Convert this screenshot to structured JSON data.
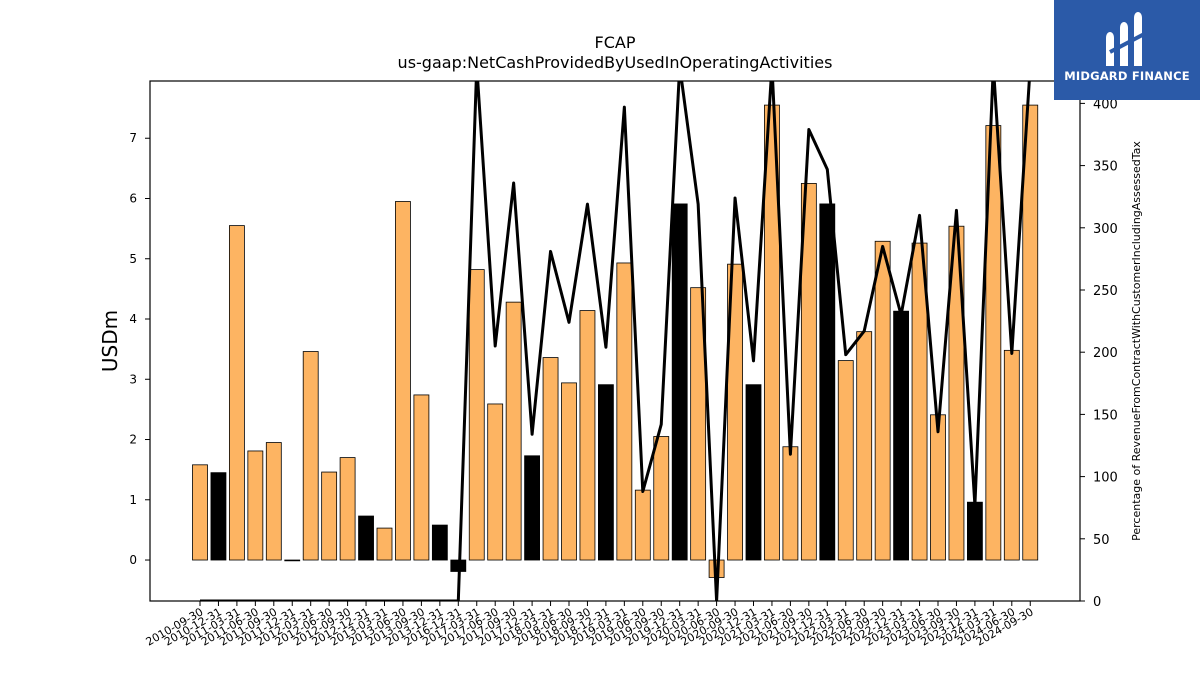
{
  "brand": {
    "logo_text": "MIDGARD FINANCE"
  },
  "chart_data": {
    "type": "bar",
    "title": "FCAP",
    "subtitle": "us-gaap:NetCashProvidedByUsedInOperatingActivities",
    "ylabel": "USDm",
    "y2label": "Percentage of RevenueFromContractWithCustomerIncludingAssessedTax",
    "ylim": [
      -0.68,
      7.95
    ],
    "y2lim": [
      0,
      418
    ],
    "yticks": [
      0,
      1,
      2,
      3,
      4,
      5,
      6,
      7
    ],
    "y2ticks": [
      0,
      50,
      100,
      150,
      200,
      250,
      300,
      350,
      400
    ],
    "grid": false,
    "categories": [
      "2010-09-30",
      "2010-12-31",
      "2011-03-31",
      "2011-06-30",
      "2011-09-30",
      "2011-12-31",
      "2012-03-31",
      "2012-06-30",
      "2012-09-30",
      "2012-12-31",
      "2013-03-31",
      "2013-06-30",
      "2013-09-30",
      "2013-12-31",
      "2016-12-31",
      "2017-03-31",
      "2017-06-30",
      "2017-09-30",
      "2017-12-31",
      "2018-03-31",
      "2018-06-30",
      "2018-09-30",
      "2018-12-31",
      "2019-03-31",
      "2019-06-30",
      "2019-09-30",
      "2019-12-31",
      "2020-03-31",
      "2020-06-30",
      "2020-09-30",
      "2020-12-31",
      "2021-03-31",
      "2021-06-30",
      "2021-09-30",
      "2021-12-31",
      "2022-03-31",
      "2022-06-30",
      "2022-09-30",
      "2022-12-31",
      "2023-03-31",
      "2023-06-30",
      "2023-09-30",
      "2023-12-31",
      "2024-03-31",
      "2024-06-30",
      "2024-09-30"
    ],
    "tick_labels": [
      "2010-09-30",
      "2010-12-31",
      "2011-03-31",
      "2011-06-30",
      "2011-09-30",
      "2011-12-31",
      "2012-03-31",
      "2012-06-30",
      "2012-09-30",
      "2012-12-31",
      "2013-03-31",
      "2013-06-30",
      "2013-09-30",
      "2013-12-31",
      "2016-12-31",
      "2017-03-31",
      "2017-06-30",
      "2017-09-30",
      "2017-12-31",
      "2018-03-31",
      "2018-06-30",
      "2018-09-30",
      "2018-12-31",
      "2019-03-31",
      "2019-06-30",
      "2019-09-30",
      "2019-12-31",
      "2020-03-31",
      "2020-06-30",
      "2020-09-30",
      "2020-12-31",
      "2021-03-31",
      "2021-06-30",
      "2021-09-30",
      "2021-12-31",
      "2022-03-31",
      "2022-06-30",
      "2022-09-30",
      "2022-12-31",
      "2023-03-31",
      "2023-06-30",
      "2023-09-30",
      "2023-12-31",
      "2024-03-31",
      "2024-06-30",
      "2024-09-30"
    ],
    "series": [
      {
        "type": "bar",
        "axis": "left",
        "values": [
          1.58,
          1.45,
          5.55,
          1.81,
          1.95,
          0.0,
          3.46,
          1.46,
          1.7,
          0.73,
          0.53,
          5.95,
          2.74,
          0.58,
          -0.19,
          4.82,
          2.59,
          4.28,
          1.73,
          3.36,
          2.94,
          4.14,
          2.91,
          4.93,
          1.16,
          2.05,
          5.91,
          4.52,
          -0.29,
          4.91,
          2.91,
          7.55,
          1.88,
          6.25,
          5.91,
          3.31,
          3.79,
          5.29,
          4.13,
          5.26,
          2.41,
          5.54,
          0.96,
          7.21,
          3.48,
          7.55
        ],
        "colors": [
          "#fdb462",
          "#000000",
          "#fdb462",
          "#fdb462",
          "#fdb462",
          "#000000",
          "#fdb462",
          "#fdb462",
          "#fdb462",
          "#000000",
          "#fdb462",
          "#fdb462",
          "#fdb462",
          "#000000",
          "#000000",
          "#fdb462",
          "#fdb462",
          "#fdb462",
          "#000000",
          "#fdb462",
          "#fdb462",
          "#fdb462",
          "#000000",
          "#fdb462",
          "#fdb462",
          "#fdb462",
          "#000000",
          "#fdb462",
          "#fdb462",
          "#fdb462",
          "#000000",
          "#fdb462",
          "#fdb462",
          "#fdb462",
          "#000000",
          "#fdb462",
          "#fdb462",
          "#fdb462",
          "#000000",
          "#fdb462",
          "#fdb462",
          "#fdb462",
          "#000000",
          "#fdb462",
          "#fdb462",
          "#fdb462"
        ]
      },
      {
        "type": "line",
        "axis": "right",
        "color": "#000000",
        "values": [
          0,
          0,
          0,
          0,
          0,
          0,
          0,
          0,
          0,
          0,
          0,
          0,
          0,
          0,
          0,
          430,
          205,
          336,
          134,
          281,
          224,
          319,
          204,
          397,
          88,
          142,
          430,
          319,
          0,
          324,
          193,
          430,
          118,
          379,
          347,
          198,
          217,
          285,
          230,
          310,
          136,
          314,
          77,
          430,
          199,
          430
        ]
      }
    ]
  }
}
